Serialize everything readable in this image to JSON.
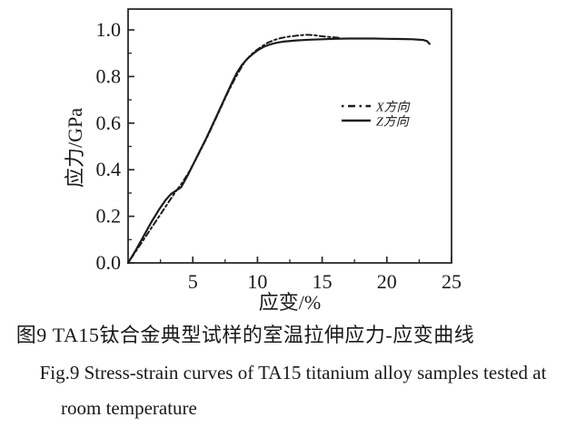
{
  "figure": {
    "caption_zh": "图9 TA15钛合金典型试样的室温拉伸应力-应变曲线",
    "caption_en_line1": "Fig.9  Stress-strain curves of TA15 titanium alloy samples tested at",
    "caption_en_line2": "room temperature"
  },
  "chart_data": {
    "type": "line",
    "title": "",
    "xlabel": "应变/%",
    "ylabel": "应力/GPa",
    "xlim": [
      0,
      25
    ],
    "ylim": [
      0,
      1.0895
    ],
    "x_ticks": [
      5,
      10,
      15,
      20,
      25
    ],
    "x_tick_labels": [
      "5",
      "10",
      "15",
      "20",
      "25"
    ],
    "x_minor_ticks": [
      2.5,
      7.5,
      12.5,
      17.5,
      22.5
    ],
    "y_ticks": [
      0.0,
      0.2,
      0.4,
      0.6,
      0.8,
      1.0
    ],
    "y_tick_labels": [
      "0.0",
      "0.2",
      "0.4",
      "0.6",
      "0.8",
      "1.0"
    ],
    "y_minor_ticks": [
      0.1,
      0.3,
      0.5,
      0.7,
      0.9
    ],
    "grid": false,
    "line_color": "#1c1c1c",
    "legend_position": "inside-center-left",
    "series": [
      {
        "name": "X方向",
        "style": "dashed",
        "color": "#1c1c1c",
        "points": [
          [
            0,
            0
          ],
          [
            0.6,
            0.05
          ],
          [
            1.2,
            0.1
          ],
          [
            1.8,
            0.15
          ],
          [
            2.4,
            0.2
          ],
          [
            3.0,
            0.25
          ],
          [
            3.6,
            0.3
          ],
          [
            4.2,
            0.345
          ],
          [
            4.7,
            0.39
          ],
          [
            5.2,
            0.44
          ],
          [
            5.7,
            0.495
          ],
          [
            6.2,
            0.55
          ],
          [
            6.7,
            0.61
          ],
          [
            7.2,
            0.67
          ],
          [
            7.7,
            0.73
          ],
          [
            8.2,
            0.785
          ],
          [
            8.6,
            0.825
          ],
          [
            9.0,
            0.862
          ],
          [
            9.4,
            0.888
          ],
          [
            9.8,
            0.908
          ],
          [
            10.3,
            0.928
          ],
          [
            10.8,
            0.945
          ],
          [
            11.3,
            0.957
          ],
          [
            11.8,
            0.965
          ],
          [
            12.3,
            0.97
          ],
          [
            12.8,
            0.974
          ],
          [
            13.3,
            0.977
          ],
          [
            13.8,
            0.979
          ],
          [
            14.3,
            0.978
          ],
          [
            14.8,
            0.974
          ],
          [
            15.3,
            0.971
          ],
          [
            15.8,
            0.969
          ],
          [
            16.3,
            0.966
          ]
        ]
      },
      {
        "name": "Z方向",
        "style": "solid",
        "color": "#1c1c1c",
        "points": [
          [
            0,
            0
          ],
          [
            0.6,
            0.055
          ],
          [
            1.2,
            0.115
          ],
          [
            1.8,
            0.175
          ],
          [
            2.4,
            0.23
          ],
          [
            2.9,
            0.27
          ],
          [
            3.3,
            0.295
          ],
          [
            3.7,
            0.31
          ],
          [
            4.1,
            0.325
          ],
          [
            4.6,
            0.375
          ],
          [
            5.0,
            0.42
          ],
          [
            5.5,
            0.475
          ],
          [
            6.0,
            0.53
          ],
          [
            6.5,
            0.59
          ],
          [
            7.0,
            0.65
          ],
          [
            7.5,
            0.71
          ],
          [
            8.0,
            0.77
          ],
          [
            8.4,
            0.815
          ],
          [
            8.8,
            0.85
          ],
          [
            9.2,
            0.875
          ],
          [
            9.6,
            0.895
          ],
          [
            10.0,
            0.912
          ],
          [
            10.5,
            0.928
          ],
          [
            11.0,
            0.938
          ],
          [
            11.5,
            0.945
          ],
          [
            12.0,
            0.95
          ],
          [
            13.0,
            0.955
          ],
          [
            14.0,
            0.958
          ],
          [
            15.0,
            0.96
          ],
          [
            16.0,
            0.962
          ],
          [
            17.0,
            0.963
          ],
          [
            18.0,
            0.963
          ],
          [
            19.0,
            0.963
          ],
          [
            20.0,
            0.962
          ],
          [
            21.0,
            0.961
          ],
          [
            22.0,
            0.96
          ],
          [
            22.8,
            0.957
          ],
          [
            23.1,
            0.952
          ],
          [
            23.3,
            0.94
          ]
        ]
      }
    ]
  }
}
